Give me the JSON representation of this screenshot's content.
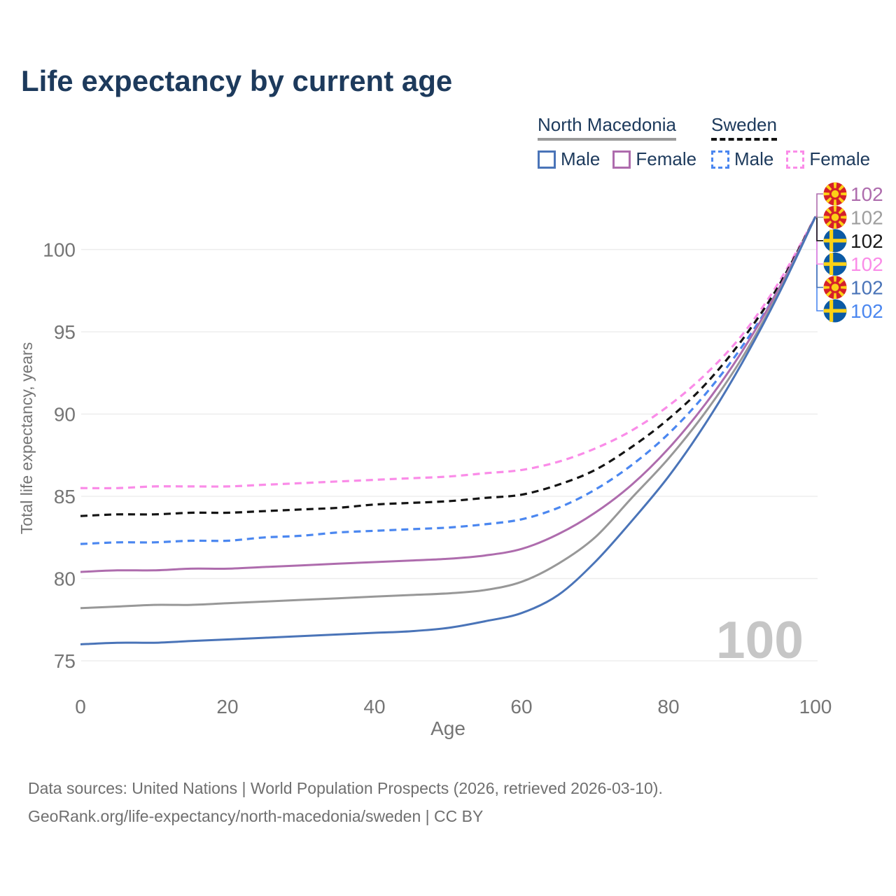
{
  "header": {
    "title": "Life expectancy by current age"
  },
  "legend": {
    "groups": [
      {
        "name": "North Macedonia",
        "underline_style": "solid",
        "underline_color": "#9a9a9a",
        "items": [
          {
            "label": "Male",
            "color": "#4a74b8",
            "dashed": false
          },
          {
            "label": "Female",
            "color": "#ae6cad",
            "dashed": false
          }
        ]
      },
      {
        "name": "Sweden",
        "underline_style": "dashed",
        "underline_color": "#141414",
        "items": [
          {
            "label": "Male",
            "color": "#4b87f0",
            "dashed": true
          },
          {
            "label": "Female",
            "color": "#fa8ce8",
            "dashed": true
          }
        ]
      }
    ]
  },
  "chart_data": {
    "type": "line",
    "title": "Life expectancy by current age",
    "xlabel": "Age",
    "ylabel": "Total life expectancy, years",
    "xlim": [
      0,
      100
    ],
    "ylim": [
      75,
      103
    ],
    "x_ticks": [
      0,
      20,
      40,
      60,
      80,
      100
    ],
    "y_ticks": [
      75,
      80,
      85,
      90,
      95,
      100
    ],
    "grid": "horizontal",
    "gridline_color": "#ededed",
    "tick_label_color": "#757575",
    "watermark": "100",
    "watermark_color": "#c6c6c6",
    "x": [
      0,
      5,
      10,
      15,
      20,
      25,
      30,
      35,
      40,
      45,
      50,
      55,
      60,
      65,
      70,
      75,
      80,
      85,
      90,
      95,
      100
    ],
    "series": [
      {
        "id": "se-female",
        "name": "Sweden Female",
        "color": "#fa8ce8",
        "dashed": true,
        "values": [
          85.5,
          85.5,
          85.6,
          85.6,
          85.6,
          85.7,
          85.8,
          85.9,
          86.0,
          86.1,
          86.2,
          86.4,
          86.6,
          87.1,
          87.9,
          89.0,
          90.5,
          92.4,
          94.8,
          98.0,
          102.0
        ]
      },
      {
        "id": "se-total",
        "name": "Sweden",
        "color": "#141414",
        "dashed": true,
        "values": [
          83.8,
          83.9,
          83.9,
          84.0,
          84.0,
          84.1,
          84.2,
          84.3,
          84.5,
          84.6,
          84.7,
          84.9,
          85.1,
          85.7,
          86.6,
          88.0,
          89.7,
          91.8,
          94.5,
          97.8,
          102.0
        ]
      },
      {
        "id": "se-male",
        "name": "Sweden Male",
        "color": "#4b87f0",
        "dashed": true,
        "values": [
          82.1,
          82.2,
          82.2,
          82.3,
          82.3,
          82.5,
          82.6,
          82.8,
          82.9,
          83.0,
          83.1,
          83.3,
          83.6,
          84.3,
          85.4,
          86.9,
          88.8,
          91.2,
          94.1,
          97.6,
          102.0
        ]
      },
      {
        "id": "mk-female",
        "name": "North Macedonia Female",
        "color": "#ae6cad",
        "dashed": false,
        "values": [
          80.4,
          80.5,
          80.5,
          80.6,
          80.6,
          80.7,
          80.8,
          80.9,
          81.0,
          81.1,
          81.2,
          81.4,
          81.8,
          82.7,
          84.0,
          85.7,
          87.9,
          90.6,
          93.8,
          97.6,
          102.0
        ]
      },
      {
        "id": "mk-total",
        "name": "North Macedonia",
        "color": "#989898",
        "dashed": false,
        "values": [
          78.2,
          78.3,
          78.4,
          78.4,
          78.5,
          78.6,
          78.7,
          78.8,
          78.9,
          79.0,
          79.1,
          79.3,
          79.8,
          80.9,
          82.5,
          84.9,
          87.3,
          90.1,
          93.4,
          97.4,
          102.0
        ]
      },
      {
        "id": "mk-male",
        "name": "North Macedonia Male",
        "color": "#4a74b8",
        "dashed": false,
        "values": [
          76.0,
          76.1,
          76.1,
          76.2,
          76.3,
          76.4,
          76.5,
          76.6,
          76.7,
          76.8,
          77.0,
          77.4,
          77.9,
          79.0,
          81.0,
          83.5,
          86.2,
          89.4,
          93.1,
          97.3,
          102.0
        ]
      }
    ],
    "end_labels": [
      {
        "series_id": "mk-female",
        "flag": "mk",
        "text": "102",
        "color": "#ae6cad"
      },
      {
        "series_id": "mk-total",
        "flag": "mk",
        "text": "102",
        "color": "#9e9e9e"
      },
      {
        "series_id": "se-total",
        "flag": "se",
        "text": "102",
        "color": "#1a1a1a"
      },
      {
        "series_id": "se-female",
        "flag": "se",
        "text": "102",
        "color": "#fa8ce8"
      },
      {
        "series_id": "mk-male",
        "flag": "mk",
        "text": "102",
        "color": "#4a74b8"
      },
      {
        "series_id": "se-male",
        "flag": "se",
        "text": "102",
        "color": "#4b87f0"
      }
    ],
    "legend_position": "top-right"
  },
  "footer": {
    "line1": "Data sources: United Nations | World Population Prospects (2026, retrieved 2026-03-10).",
    "line2": "GeoRank.org/life-expectancy/north-macedonia/sweden | CC BY"
  }
}
